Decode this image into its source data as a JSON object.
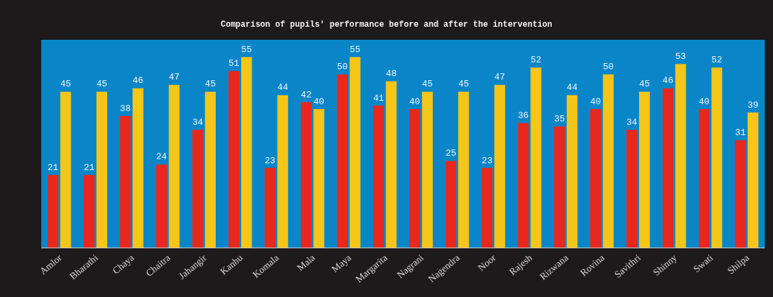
{
  "chart_data": {
    "type": "bar",
    "title": "Comparison of pupils' performance before and after the intervention",
    "categories": [
      "Amlor",
      "Bharathi",
      "Chaya",
      "Chaitra",
      "Jahangir",
      "Kanhu",
      "Komala",
      "Mala",
      "Maya",
      "Margarita",
      "Nagrani",
      "Nagendra",
      "Noor",
      "Rajesh",
      "Rizwana",
      "Rovina",
      "Savithri",
      "Shinny",
      "Swati",
      "Shilpa"
    ],
    "series": [
      {
        "color": "#e8281e",
        "values": [
          21,
          21,
          38,
          24,
          34,
          51,
          23,
          42,
          50,
          41,
          40,
          25,
          23,
          36,
          35,
          40,
          34,
          46,
          40,
          31
        ]
      },
      {
        "color": "#f5c518",
        "values": [
          45,
          45,
          46,
          47,
          45,
          55,
          44,
          40,
          55,
          48,
          45,
          45,
          47,
          52,
          44,
          50,
          45,
          53,
          52,
          39
        ]
      }
    ],
    "ylim": [
      0,
      60
    ],
    "data_labels": true,
    "tick_labels": "x"
  }
}
